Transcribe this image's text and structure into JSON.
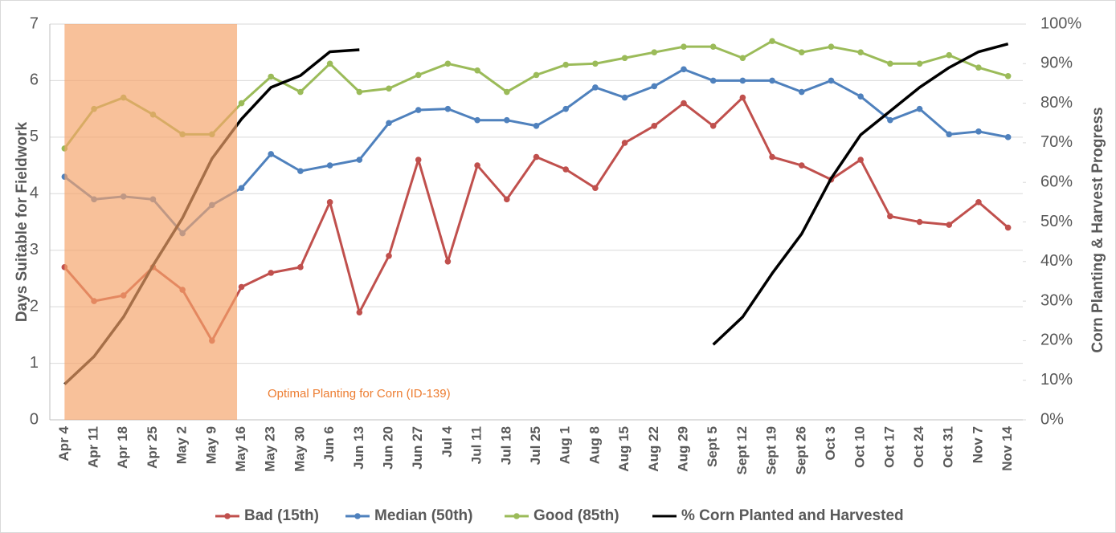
{
  "chart_data": {
    "type": "line",
    "categories": [
      "Apr 4",
      "Apr 11",
      "Apr 18",
      "Apr 25",
      "May 2",
      "May 9",
      "May 16",
      "May 23",
      "May 30",
      "Jun 6",
      "Jun 13",
      "Jun 20",
      "Jun 27",
      "Jul 4",
      "Jul 11",
      "Jul 18",
      "Jul 25",
      "Aug 1",
      "Aug 8",
      "Aug 15",
      "Aug 22",
      "Aug 29",
      "Sept 5",
      "Sept 12",
      "Sept 19",
      "Sept 26",
      "Oct 3",
      "Oct 10",
      "Oct 17",
      "Oct 24",
      "Oct 31",
      "Nov 7",
      "Nov 14"
    ],
    "series": [
      {
        "name": "Bad (15th)",
        "color": "#c0504d",
        "values": [
          2.7,
          2.1,
          2.2,
          2.7,
          2.3,
          1.4,
          2.35,
          2.6,
          2.7,
          3.85,
          1.9,
          2.9,
          4.6,
          2.8,
          4.5,
          3.9,
          4.65,
          4.43,
          4.1,
          4.9,
          5.2,
          5.6,
          5.2,
          5.7,
          4.65,
          4.5,
          4.25,
          4.6,
          3.6,
          3.5,
          3.45,
          3.85,
          3.4
        ]
      },
      {
        "name": "Median (50th)",
        "color": "#4f81bd",
        "values": [
          4.3,
          3.9,
          3.95,
          3.9,
          3.3,
          3.8,
          4.1,
          4.7,
          4.4,
          4.5,
          4.6,
          5.25,
          5.48,
          5.5,
          5.3,
          5.3,
          5.2,
          5.5,
          5.88,
          5.7,
          5.9,
          6.2,
          6.0,
          6.0,
          6.0,
          5.8,
          6.0,
          5.72,
          5.3,
          5.5,
          5.05,
          5.1,
          5.0
        ]
      },
      {
        "name": "Good (85th)",
        "color": "#9bbb59",
        "values": [
          4.8,
          5.5,
          5.7,
          5.4,
          5.05,
          5.05,
          5.6,
          6.07,
          5.8,
          6.3,
          5.8,
          5.86,
          6.1,
          6.3,
          6.18,
          5.8,
          6.1,
          6.28,
          6.3,
          6.4,
          6.5,
          6.6,
          6.6,
          6.4,
          6.7,
          6.5,
          6.6,
          6.5,
          6.3,
          6.3,
          6.45,
          6.23,
          6.08
        ]
      },
      {
        "name": "% Corn Planted and Harvested",
        "color": "#000000",
        "axis": "y2",
        "values": [
          9,
          16,
          26,
          39,
          51,
          66,
          76,
          84,
          87,
          93,
          93.5,
          null,
          null,
          null,
          null,
          null,
          null,
          null,
          null,
          null,
          null,
          null,
          19,
          26,
          37,
          47,
          61,
          72,
          78,
          84,
          89,
          93,
          95
        ]
      }
    ],
    "ylabel": "Days Suitable for Fieldwork",
    "y2label": "Corn Planting & Harvest Progress",
    "annotation": "Optimal Planting for Corn (ID-139)",
    "ylim": [
      0,
      7
    ],
    "yticks": [
      0,
      1,
      2,
      3,
      4,
      5,
      6,
      7
    ],
    "y2lim": [
      0,
      100
    ],
    "y2ticks": [
      {
        "value": 0,
        "label": "0%"
      },
      {
        "value": 10,
        "label": "10%"
      },
      {
        "value": 20,
        "label": "20%"
      },
      {
        "value": 30,
        "label": "30%"
      },
      {
        "value": 40,
        "label": "40%"
      },
      {
        "value": 50,
        "label": "50%"
      },
      {
        "value": 60,
        "label": "60%"
      },
      {
        "value": 70,
        "label": "70%"
      },
      {
        "value": 80,
        "label": "80%"
      },
      {
        "value": 90,
        "label": "90%"
      },
      {
        "value": 100,
        "label": "100%"
      }
    ],
    "grid": true,
    "legend": "bottom"
  }
}
